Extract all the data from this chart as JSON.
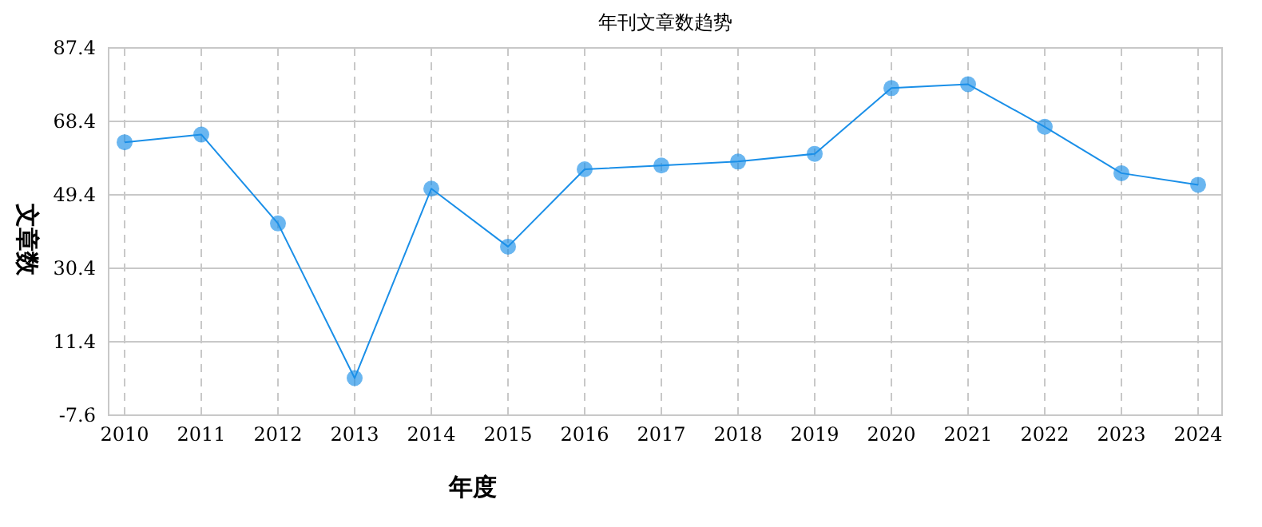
{
  "chart_data": {
    "type": "line",
    "title": "年刊文章数趋势",
    "xlabel": "年度",
    "ylabel": "文章数",
    "categories": [
      "2010",
      "2011",
      "2012",
      "2013",
      "2014",
      "2015",
      "2016",
      "2017",
      "2018",
      "2019",
      "2020",
      "2021",
      "2022",
      "2023",
      "2024"
    ],
    "series": [
      {
        "color": "#1a8fe8",
        "values": [
          63,
          65,
          42,
          2,
          51,
          36,
          56,
          57,
          58,
          60,
          77,
          78,
          67,
          55,
          52
        ]
      }
    ],
    "ylim": [
      -7.6,
      87.4
    ],
    "yticks": [
      -7.6,
      11.4,
      30.4,
      49.4,
      68.4,
      87.4
    ],
    "grid": true,
    "marker": "circle"
  }
}
